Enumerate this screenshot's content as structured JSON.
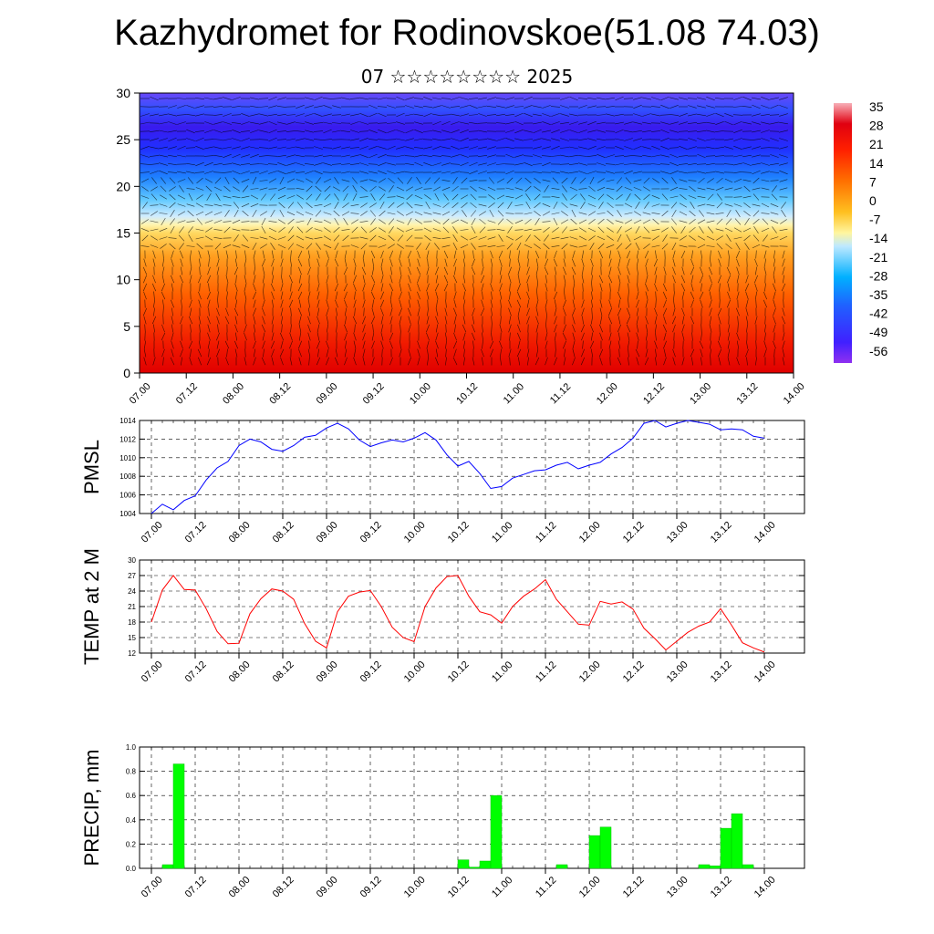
{
  "header": {
    "title": "Kazhydromet for Rodinovskoe(51.08 74.03)",
    "subtitle": "07 ☆☆☆☆☆☆☆☆ 2025"
  },
  "time_labels": [
    "07.00",
    "07.12",
    "08.00",
    "08.12",
    "09.00",
    "09.12",
    "10.00",
    "10.12",
    "11.00",
    "11.12",
    "12.00",
    "12.12",
    "13.00",
    "13.12",
    "14.00"
  ],
  "colorbar": {
    "labels": [
      "35",
      "28",
      "21",
      "14",
      "7",
      "0",
      "-7",
      "-14",
      "-21",
      "-28",
      "-35",
      "-42",
      "-49",
      "-56"
    ]
  },
  "chart_data": [
    {
      "type": "heatmap",
      "title": "",
      "xlabel": "",
      "ylabel": "",
      "x_range": [
        "07.00",
        "14.00"
      ],
      "ylim": [
        0,
        30
      ],
      "y_ticks": [
        "0",
        "5",
        "10",
        "15",
        "20",
        "25",
        "30"
      ],
      "value_range": [
        -56,
        35
      ],
      "colormap": [
        "#8000ff",
        "#3333ff",
        "#00b0ff",
        "#bfe9ff",
        "#fff9b0",
        "#ffc020",
        "#ff6000",
        "#e00000",
        "#ffb0b0"
      ],
      "overlay": "wind vector field"
    },
    {
      "type": "line",
      "ylabel": "PMSL",
      "ylim": [
        1004,
        1014
      ],
      "y_ticks": [
        "1004",
        "1006",
        "1008",
        "1010",
        "1012",
        "1014"
      ],
      "color": "#0000ff",
      "x_step_hours": 3,
      "values": [
        1004.0,
        1005.0,
        1004.4,
        1005.4,
        1005.9,
        1007.6,
        1008.9,
        1009.6,
        1011.3,
        1012.0,
        1011.7,
        1010.9,
        1010.7,
        1011.3,
        1012.2,
        1012.4,
        1013.2,
        1013.7,
        1013.1,
        1011.9,
        1011.2,
        1011.6,
        1011.9,
        1011.7,
        1012.1,
        1012.7,
        1011.9,
        1010.3,
        1009.1,
        1009.6,
        1008.3,
        1006.7,
        1006.9,
        1007.8,
        1008.2,
        1008.6,
        1008.7,
        1009.2,
        1009.5,
        1008.8,
        1009.2,
        1009.5,
        1010.4,
        1011.1,
        1012.1,
        1013.7,
        1014.0,
        1013.3,
        1013.7,
        1014.0,
        1013.8,
        1013.6,
        1013.0,
        1013.1,
        1013.0,
        1012.3,
        1012.1
      ]
    },
    {
      "type": "line",
      "ylabel": "TEMP at 2 M",
      "ylim": [
        12,
        30
      ],
      "y_ticks": [
        "12",
        "15",
        "18",
        "21",
        "24",
        "27",
        "30"
      ],
      "color": "#ff0000",
      "x_step_hours": 3,
      "values": [
        18.0,
        24.2,
        27.0,
        24.3,
        24.2,
        20.6,
        16.2,
        13.8,
        13.9,
        19.6,
        22.5,
        24.4,
        24.0,
        22.4,
        17.7,
        14.3,
        13.0,
        20.0,
        23.0,
        23.8,
        24.1,
        21.0,
        17.0,
        15.0,
        14.2,
        21.0,
        24.6,
        26.8,
        27.0,
        23.0,
        20.0,
        19.4,
        17.8,
        21.0,
        23.0,
        24.4,
        26.2,
        22.4,
        20.0,
        17.6,
        17.4,
        22.0,
        21.5,
        21.9,
        20.5,
        16.8,
        14.8,
        12.6,
        14.3,
        16.0,
        17.2,
        18.0,
        20.6,
        17.4,
        14.0,
        13.0,
        12.2
      ]
    },
    {
      "type": "bar",
      "ylabel": "PRECIP, mm",
      "ylim": [
        0,
        1
      ],
      "y_ticks": [
        "0.0",
        "0.2",
        "0.4",
        "0.6",
        "0.8",
        "1.0"
      ],
      "color": "#00ff00",
      "x_step_hours": 3,
      "values": [
        0,
        0.03,
        0.86,
        0,
        0,
        0,
        0,
        0,
        0,
        0,
        0,
        0,
        0,
        0,
        0,
        0,
        0,
        0,
        0,
        0,
        0,
        0,
        0,
        0,
        0,
        0,
        0,
        0,
        0.07,
        0.01,
        0.06,
        0.6,
        0,
        0,
        0,
        0,
        0,
        0.03,
        0,
        0,
        0.27,
        0.34,
        0,
        0,
        0,
        0,
        0,
        0,
        0,
        0,
        0.03,
        0.02,
        0.33,
        0.45,
        0.03,
        0,
        0
      ]
    }
  ]
}
